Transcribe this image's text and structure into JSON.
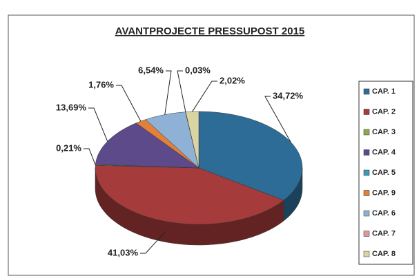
{
  "chart_data": {
    "type": "pie3d",
    "title": "AVANTPROJECTE PRESSUPOST 2015",
    "categories": [
      "CAP. 1",
      "CAP. 2",
      "CAP. 3",
      "CAP. 4",
      "CAP. 5",
      "CAP. 9",
      "CAP. 6",
      "CAP. 7",
      "CAP. 8"
    ],
    "values": [
      34.72,
      41.03,
      0.21,
      13.69,
      null,
      1.76,
      6.54,
      0.03,
      2.02
    ],
    "value_labels": [
      "34,72%",
      "41,03%",
      "0,21%",
      "13,69%",
      null,
      "1,76%",
      "6,54%",
      "0,03%",
      "2,02%"
    ],
    "colors": [
      "#2e6c98",
      "#a53b3b",
      "#8ea94a",
      "#5d4a8a",
      "#3a9bb2",
      "#e0803a",
      "#8fb1d6",
      "#d99a98",
      "#d9d5a2"
    ],
    "legend": "right"
  }
}
